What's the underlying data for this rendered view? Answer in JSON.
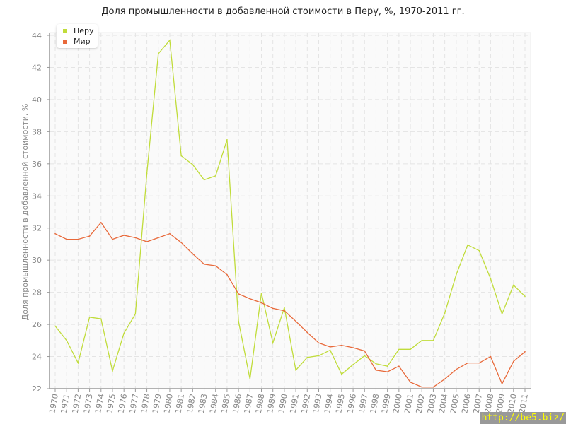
{
  "chart_data": {
    "type": "line",
    "title": "Доля промышленности в добавленной стоимости в Перу, %, 1970-2011 гг.",
    "xlabel": "",
    "ylabel": "Доля промышленности в добавленной стоимости, %",
    "ylim": [
      22,
      44
    ],
    "yticks": [
      22,
      24,
      26,
      28,
      30,
      32,
      34,
      36,
      38,
      40,
      42,
      44
    ],
    "grid": true,
    "legend_position": "top-left",
    "x": [
      1970,
      1971,
      1972,
      1973,
      1974,
      1975,
      1976,
      1977,
      1978,
      1979,
      1980,
      1981,
      1982,
      1983,
      1984,
      1985,
      1986,
      1987,
      1988,
      1989,
      1990,
      1991,
      1992,
      1993,
      1994,
      1995,
      1996,
      1997,
      1998,
      1999,
      2000,
      2001,
      2002,
      2003,
      2004,
      2005,
      2006,
      2007,
      2008,
      2009,
      2010,
      2011
    ],
    "series": [
      {
        "name": "Перу",
        "color": "#c0dc3a",
        "values": [
          25.9,
          25.0,
          23.6,
          26.45,
          26.35,
          23.1,
          25.45,
          26.65,
          35.4,
          42.85,
          43.7,
          36.5,
          35.95,
          35.0,
          35.25,
          37.5,
          26.2,
          22.6,
          27.95,
          24.85,
          27.05,
          23.15,
          23.95,
          24.05,
          24.4,
          22.9,
          23.5,
          24.05,
          23.55,
          23.4,
          24.45,
          24.45,
          25.0,
          25.0,
          26.7,
          29.1,
          30.95,
          30.6,
          28.85,
          26.65,
          28.45,
          27.75
        ]
      },
      {
        "name": "Мир",
        "color": "#e8693a",
        "values": [
          31.65,
          31.3,
          31.3,
          31.5,
          32.35,
          31.3,
          31.55,
          31.4,
          31.15,
          31.4,
          31.65,
          31.1,
          30.4,
          29.75,
          29.65,
          29.1,
          27.9,
          27.6,
          27.35,
          27.0,
          26.85,
          26.2,
          25.5,
          24.85,
          24.6,
          24.7,
          24.55,
          24.35,
          23.15,
          23.05,
          23.4,
          22.4,
          22.1,
          22.1,
          22.6,
          23.2,
          23.6,
          23.6,
          24.0,
          22.3,
          23.7,
          24.3
        ]
      }
    ]
  },
  "watermark": "http://be5.biz/"
}
